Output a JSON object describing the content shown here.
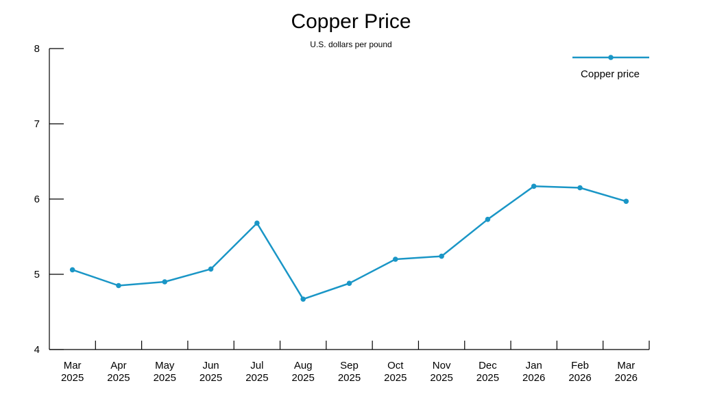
{
  "chart_data": {
    "type": "line",
    "title": "Copper Price",
    "subtitle": "U.S. dollars per pound",
    "categories": [
      [
        "Mar",
        "2025"
      ],
      [
        "Apr",
        "2025"
      ],
      [
        "May",
        "2025"
      ],
      [
        "Jun",
        "2025"
      ],
      [
        "Jul",
        "2025"
      ],
      [
        "Aug",
        "2025"
      ],
      [
        "Sep",
        "2025"
      ],
      [
        "Oct",
        "2025"
      ],
      [
        "Nov",
        "2025"
      ],
      [
        "Dec",
        "2025"
      ],
      [
        "Jan",
        "2026"
      ],
      [
        "Feb",
        "2026"
      ],
      [
        "Mar",
        "2026"
      ]
    ],
    "series": [
      {
        "name": "Copper price",
        "values": [
          5.06,
          4.85,
          4.9,
          5.07,
          5.68,
          4.67,
          4.88,
          5.2,
          5.24,
          5.73,
          6.17,
          6.15,
          5.97
        ]
      }
    ],
    "ylim": [
      4,
      8
    ],
    "yticks": [
      4,
      5,
      6,
      7,
      8
    ],
    "grid": false,
    "legend": "top-right",
    "colors": {
      "line": "#1a96c6",
      "axis": "#000000"
    }
  }
}
